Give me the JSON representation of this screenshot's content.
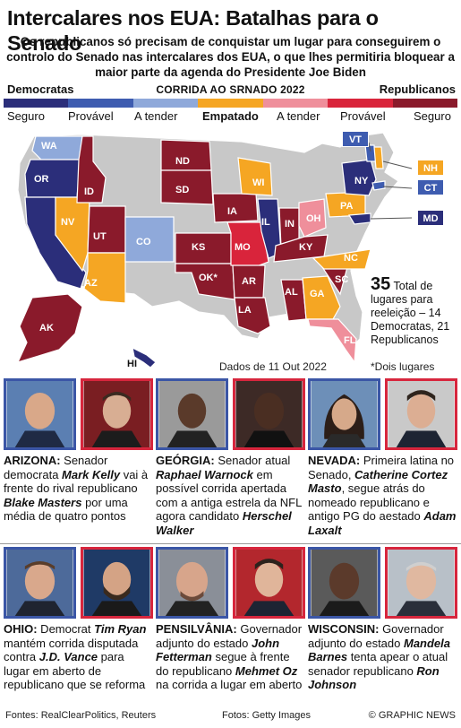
{
  "title": "Intercalares nos EUA: Batalhas para o Senado",
  "subtitle": "Os republicanos só precisam de conquistar um lugar para conseguirem o controlo do Senado nas intercalares dos EUA, o que lhes permitiria bloquear a maior parte da agenda do Presidente Joe Biden",
  "legend": {
    "left": "Democratas",
    "center": "CORRIDA AO SRNADO 2022",
    "right": "Republicanos",
    "categories": [
      {
        "label": "Seguro",
        "color": "#2b2e7a"
      },
      {
        "label": "Provável",
        "color": "#3e5cb0"
      },
      {
        "label": "A tender",
        "color": "#8fa9da"
      },
      {
        "label": "Empatado",
        "color": "#f5a623"
      },
      {
        "label": "A tender",
        "color": "#ef8f9b"
      },
      {
        "label": "Provável",
        "color": "#d9243b"
      },
      {
        "label": "Seguro",
        "color": "#8a1a2b"
      }
    ]
  },
  "states": {
    "WA": "WA",
    "OR": "OR",
    "CA": "CA",
    "NV": "NV",
    "ID": "ID",
    "UT": "UT",
    "AZ": "AZ",
    "CO": "CO",
    "ND": "ND",
    "SD": "SD",
    "KS": "KS",
    "OK": "OK*",
    "IA": "IA",
    "MO": "MO",
    "AR": "AR",
    "LA": "LA",
    "WI": "WI",
    "IL": "IL",
    "IN": "IN",
    "OH": "OH",
    "KY": "KY",
    "AL": "AL",
    "GA": "GA",
    "SC": "SC",
    "NC": "NC",
    "FL": "FL",
    "PA": "PA",
    "NY": "NY",
    "VT": "VT",
    "NH": "NH",
    "CT": "CT",
    "MD": "MD",
    "AK": "AK",
    "HI": "HI"
  },
  "total": {
    "number": "35",
    "text": "Total de lugares para reeleição – 14 Democratas, 21 Republicanos"
  },
  "date_note": "Dados de 11 Out 2022",
  "two_seats": "*Dois lugares",
  "panels": [
    {
      "state": "ARIZONA:",
      "t1": " Senador democrata ",
      "n1": "Mark Kelly",
      "t2": " vai à frente do rival republicano ",
      "n2": "Blake Masters",
      "t3": " por uma média de quatro pontos"
    },
    {
      "state": "GEÓRGIA:",
      "t1": " Senador atual ",
      "n1": "Raphael Warnock",
      "t2": " em possível corrida apertada com a antiga estrela da NFL agora candidato ",
      "n2": "Herschel Walker",
      "t3": ""
    },
    {
      "state": "NEVADA:",
      "t1": " Primeira latina no Senado, ",
      "n1": "Catherine Cortez Masto",
      "t2": ", segue atrás do nomeado republicano e antigo PG do aestado ",
      "n2": "Adam Laxalt",
      "t3": ""
    },
    {
      "state": "OHIO:",
      "t1": " Democrat ",
      "n1": "Tim Ryan",
      "t2": " mantém corrida disputada contra ",
      "n2": "J.D. Vance",
      "t3": " para lugar em aberto de republicano que se reforma"
    },
    {
      "state": "PENSILVÂNIA:",
      "t1": " Governador adjunto do estado ",
      "n1": "John Fetterman",
      "t2": " segue à frente do republicano ",
      "n2": "Mehmet Oz",
      "t3": " na corrida a lugar em aberto"
    },
    {
      "state": "WISCONSIN:",
      "t1": " Governador adjunto do estado ",
      "n1": "Mandela Barnes",
      "t2": " tenta apear o atual senador republicano ",
      "n2": "Ron Johnson",
      "t3": ""
    }
  ],
  "footer": {
    "sources": "Fontes: RealClearPolitics, Reuters",
    "photos": "Fotos: Getty Images",
    "copyright": "© GRAPHIC NEWS"
  }
}
